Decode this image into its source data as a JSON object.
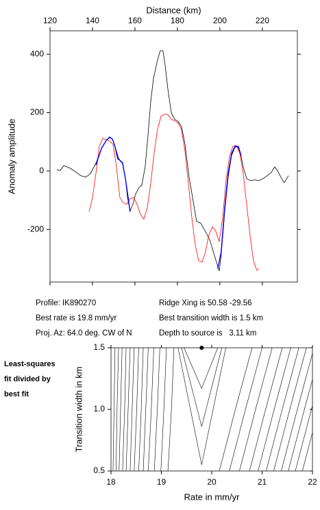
{
  "info": {
    "profile": "Profile: IK890270",
    "rate": "Best rate is 19.8 mm/yr",
    "azimuth": "Proj. Az: 64.0 deg. CW of N",
    "ridge": "Ridge Xing is 50.58 -29.56",
    "width": "Best transition width is 1.5 km",
    "depth": "Depth to source is   3.11 km",
    "note": [
      "Least-squares",
      "fit divided by",
      "best fit"
    ]
  },
  "chart_data": [
    {
      "type": "line",
      "xlabel": "Distance (km)",
      "ylabel": "Anomaly amplitude",
      "xlim": [
        120,
        236.5
      ],
      "ylim": [
        -380,
        480
      ],
      "xticks": [
        120,
        140,
        160,
        180,
        200,
        220
      ],
      "yticks": [
        -200,
        0,
        200,
        400
      ],
      "series": [
        {
          "color": "#000000",
          "x": [
            123.2,
            124.8,
            126.5,
            128.1,
            129.7,
            131.9,
            134.5,
            136.8,
            139.0,
            141.6,
            144.2,
            146.5,
            148.1,
            149.4,
            150.6,
            152.3,
            153.2,
            154.2,
            155.5,
            156.5,
            157.7,
            159.0,
            160.3,
            161.9,
            163.2,
            164.8,
            166.1,
            167.4,
            168.7,
            170.6,
            171.9,
            173.2,
            174.2,
            175.5,
            177.1,
            178.7,
            180.3,
            181.9,
            183.5,
            185.5,
            187.4,
            189.0,
            191.0,
            193.2,
            195.2,
            197.1,
            198.4,
            199.7,
            200.6,
            202.3,
            203.9,
            205.5,
            207.1,
            208.4,
            209.7,
            211.0,
            212.6,
            214.5,
            216.5,
            218.4,
            220.3,
            222.3,
            224.2,
            225.8,
            227.1,
            228.7,
            230.3,
            232.3
          ],
          "values": [
            5,
            2,
            19,
            14,
            9,
            -2,
            -16,
            -21,
            -9,
            26,
            77,
            105,
            114,
            109,
            84,
            44,
            33,
            30,
            -26,
            -91,
            -137,
            -114,
            -79,
            -56,
            -49,
            14,
            119,
            235,
            316,
            379,
            412,
            412,
            363,
            281,
            200,
            177,
            170,
            153,
            95,
            -21,
            -102,
            -172,
            -179,
            -207,
            -235,
            -281,
            -312,
            -342,
            -288,
            -137,
            -21,
            53,
            81,
            84,
            60,
            14,
            -26,
            -33,
            -30,
            -33,
            -26,
            -16,
            -5,
            14,
            2,
            -21,
            -40,
            -16
          ]
        },
        {
          "color": "#ff0000",
          "x": [
            138.4,
            140.0,
            141.6,
            143.2,
            144.8,
            146.5,
            148.1,
            149.7,
            151.3,
            152.9,
            154.5,
            156.1,
            157.7,
            159.4,
            161.0,
            162.6,
            164.2,
            165.8,
            167.4,
            169.0,
            170.6,
            172.3,
            173.9,
            175.5,
            177.1,
            178.7,
            180.3,
            181.9,
            183.5,
            185.2,
            186.8,
            188.4,
            190.0,
            191.6,
            193.2,
            194.8,
            196.5,
            198.1,
            199.7,
            201.3,
            202.9,
            204.5,
            206.1,
            207.7,
            209.4,
            211.0,
            212.6,
            214.2,
            215.8,
            217.4,
            218.4
          ],
          "values": [
            -140,
            -91,
            -9,
            84,
            112,
            107,
            102,
            91,
            14,
            -91,
            -109,
            -114,
            -95,
            -91,
            -114,
            -149,
            -165,
            -126,
            -44,
            60,
            142,
            188,
            195,
            193,
            177,
            172,
            165,
            142,
            72,
            -44,
            -160,
            -253,
            -307,
            -312,
            -277,
            -219,
            -191,
            -207,
            -242,
            -160,
            -33,
            49,
            84,
            88,
            60,
            -9,
            -114,
            -219,
            -307,
            -340,
            -335
          ]
        },
        {
          "color": "#0000ff",
          "x": [
            141.6,
            144.2,
            146.5,
            148.1,
            149.4,
            150.6,
            151.9,
            153.2,
            154.2,
            155.5,
            156.8,
            157.7
          ],
          "values": [
            21,
            77,
            105,
            116,
            109,
            84,
            42,
            35,
            26,
            -26,
            -91,
            -140
          ]
        },
        {
          "color": "#0000ff",
          "x": [
            199.0,
            200.6,
            202.3,
            203.9,
            205.5,
            207.1,
            208.7,
            210.0
          ],
          "values": [
            -335,
            -277,
            -126,
            -9,
            60,
            84,
            84,
            53
          ]
        }
      ]
    },
    {
      "type": "contour",
      "xlabel": "Rate in mm/yr",
      "ylabel": "Transition width in km",
      "xlim": [
        18,
        22
      ],
      "ylim": [
        0.5,
        1.5
      ],
      "xticks": [
        18,
        19,
        20,
        21,
        22
      ],
      "yticks": [
        0.5,
        {
          "value": 1.0,
          "label": "1.0"
        },
        1.5
      ],
      "best": {
        "rate": 19.8,
        "width": 1.5
      },
      "contours": [
        {
          "rate": [
            18.08,
            18.06,
            18.04
          ],
          "width": [
            1.5,
            1.0,
            0.5
          ]
        },
        {
          "rate": [
            18.15,
            18.12,
            18.1
          ],
          "width": [
            1.5,
            1.0,
            0.5
          ]
        },
        {
          "rate": [
            18.22,
            18.19,
            18.16
          ],
          "width": [
            1.5,
            1.0,
            0.5
          ]
        },
        {
          "rate": [
            18.3,
            18.27,
            18.23
          ],
          "width": [
            1.5,
            1.0,
            0.5
          ]
        },
        {
          "rate": [
            18.38,
            18.34,
            18.3
          ],
          "width": [
            1.5,
            1.0,
            0.5
          ]
        },
        {
          "rate": [
            18.46,
            18.42,
            18.38
          ],
          "width": [
            1.5,
            1.0,
            0.5
          ]
        },
        {
          "rate": [
            18.55,
            18.51,
            18.46
          ],
          "width": [
            1.5,
            1.0,
            0.5
          ]
        },
        {
          "rate": [
            18.64,
            18.6,
            18.55
          ],
          "width": [
            1.5,
            1.0,
            0.5
          ]
        },
        {
          "rate": [
            18.74,
            18.69,
            18.64
          ],
          "width": [
            1.5,
            1.0,
            0.5
          ]
        },
        {
          "rate": [
            18.85,
            18.8,
            18.74
          ],
          "width": [
            1.5,
            1.0,
            0.5
          ]
        },
        {
          "rate": [
            18.97,
            18.92,
            18.86
          ],
          "width": [
            1.5,
            1.0,
            0.5
          ]
        },
        {
          "rate": [
            19.1,
            19.05,
            18.99
          ],
          "width": [
            1.5,
            1.0,
            0.5
          ]
        },
        {
          "rate": [
            19.25,
            19.2,
            19.13
          ],
          "width": [
            1.5,
            1.0,
            0.5
          ]
        },
        {
          "rate": [
            19.45,
            19.8,
            20.12
          ],
          "width": [
            1.5,
            1.17,
            1.5
          ]
        },
        {
          "rate": [
            19.4,
            19.8,
            20.2
          ],
          "width": [
            1.5,
            0.86,
            1.5
          ]
        },
        {
          "rate": [
            19.33,
            19.8,
            20.28
          ],
          "width": [
            1.5,
            0.55,
            1.5
          ]
        },
        {
          "rate": [
            20.15,
            20.47,
            20.8
          ],
          "width": [
            0.5,
            1.0,
            1.5
          ]
        },
        {
          "rate": [
            20.35,
            20.67,
            21.0
          ],
          "width": [
            0.5,
            1.0,
            1.5
          ]
        },
        {
          "rate": [
            20.55,
            20.87,
            21.2
          ],
          "width": [
            0.5,
            1.0,
            1.5
          ]
        },
        {
          "rate": [
            20.75,
            21.07,
            21.4
          ],
          "width": [
            0.5,
            1.0,
            1.5
          ]
        },
        {
          "rate": [
            20.92,
            21.24,
            21.57
          ],
          "width": [
            0.5,
            1.0,
            1.5
          ]
        },
        {
          "rate": [
            21.08,
            21.4,
            21.73
          ],
          "width": [
            0.5,
            1.0,
            1.5
          ]
        },
        {
          "rate": [
            21.23,
            21.55,
            21.88
          ],
          "width": [
            0.5,
            1.0,
            1.5
          ]
        },
        {
          "rate": [
            21.38,
            21.7,
            22.03
          ],
          "width": [
            0.5,
            1.0,
            1.5
          ]
        },
        {
          "rate": [
            21.52,
            21.84,
            22.17
          ],
          "width": [
            0.5,
            1.0,
            1.5
          ]
        },
        {
          "rate": [
            21.66,
            21.98,
            22.31
          ],
          "width": [
            0.5,
            1.0,
            1.5
          ]
        },
        {
          "rate": [
            21.8,
            22.12,
            22.45
          ],
          "width": [
            0.5,
            1.0,
            1.5
          ]
        }
      ]
    }
  ]
}
